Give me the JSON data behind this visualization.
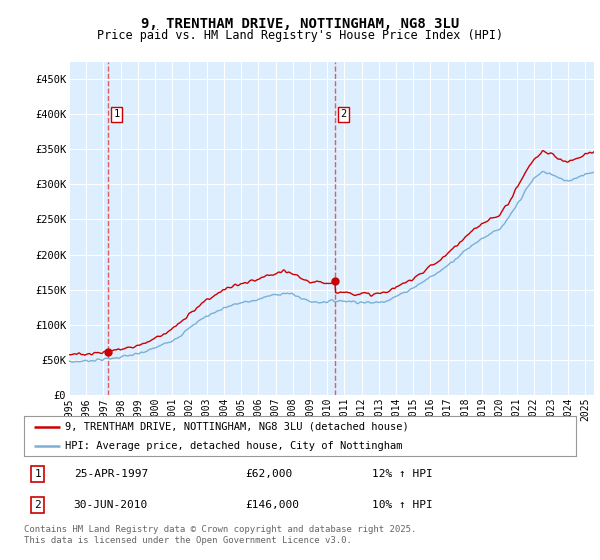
{
  "title": "9, TRENTHAM DRIVE, NOTTINGHAM, NG8 3LU",
  "subtitle": "Price paid vs. HM Land Registry's House Price Index (HPI)",
  "legend_line1": "9, TRENTHAM DRIVE, NOTTINGHAM, NG8 3LU (detached house)",
  "legend_line2": "HPI: Average price, detached house, City of Nottingham",
  "footer": "Contains HM Land Registry data © Crown copyright and database right 2025.\nThis data is licensed under the Open Government Licence v3.0.",
  "purchase1_date": "25-APR-1997",
  "purchase1_price": 62000,
  "purchase1_hpi": "12% ↑ HPI",
  "purchase2_date": "30-JUN-2010",
  "purchase2_price": 146000,
  "purchase2_hpi": "10% ↑ HPI",
  "t1": 1997.29,
  "t2": 2010.46,
  "xmin": 1995.0,
  "xmax": 2025.5,
  "ymin": 0,
  "ymax": 475000,
  "yticks": [
    0,
    50000,
    100000,
    150000,
    200000,
    250000,
    300000,
    350000,
    400000,
    450000
  ],
  "ytick_labels": [
    "£0",
    "£50K",
    "£100K",
    "£150K",
    "£200K",
    "£250K",
    "£300K",
    "£350K",
    "£400K",
    "£450K"
  ],
  "line_color_red": "#cc0000",
  "line_color_blue": "#7ab0d4",
  "vline_color": "#dd4444",
  "marker_color": "#cc0000",
  "plot_bg": "#ddeeff",
  "grid_color": "#ffffff",
  "annotation_box_color": "#cc0000",
  "xtick_years": [
    1995,
    1996,
    1997,
    1998,
    1999,
    2000,
    2001,
    2002,
    2003,
    2004,
    2005,
    2006,
    2007,
    2008,
    2009,
    2010,
    2011,
    2012,
    2013,
    2014,
    2015,
    2016,
    2017,
    2018,
    2019,
    2020,
    2021,
    2022,
    2023,
    2024,
    2025
  ],
  "hpi_base_points": [
    [
      1995.0,
      47000
    ],
    [
      1995.5,
      47500
    ],
    [
      1996.0,
      48500
    ],
    [
      1996.5,
      49500
    ],
    [
      1997.0,
      50500
    ],
    [
      1997.5,
      52000
    ],
    [
      1998.0,
      54000
    ],
    [
      1998.5,
      56000
    ],
    [
      1999.0,
      58000
    ],
    [
      1999.5,
      62000
    ],
    [
      2000.0,
      67000
    ],
    [
      2000.5,
      72000
    ],
    [
      2001.0,
      78000
    ],
    [
      2001.5,
      85000
    ],
    [
      2002.0,
      95000
    ],
    [
      2002.5,
      105000
    ],
    [
      2003.0,
      112000
    ],
    [
      2003.5,
      118000
    ],
    [
      2004.0,
      124000
    ],
    [
      2004.5,
      128000
    ],
    [
      2005.0,
      131000
    ],
    [
      2005.5,
      133000
    ],
    [
      2006.0,
      136000
    ],
    [
      2006.5,
      140000
    ],
    [
      2007.0,
      143000
    ],
    [
      2007.5,
      145000
    ],
    [
      2008.0,
      143000
    ],
    [
      2008.5,
      138000
    ],
    [
      2009.0,
      133000
    ],
    [
      2009.5,
      132000
    ],
    [
      2010.0,
      133000
    ],
    [
      2010.5,
      134000
    ],
    [
      2011.0,
      134000
    ],
    [
      2011.5,
      133000
    ],
    [
      2012.0,
      132000
    ],
    [
      2012.5,
      131000
    ],
    [
      2013.0,
      132000
    ],
    [
      2013.5,
      135000
    ],
    [
      2014.0,
      140000
    ],
    [
      2014.5,
      146000
    ],
    [
      2015.0,
      153000
    ],
    [
      2015.5,
      160000
    ],
    [
      2016.0,
      168000
    ],
    [
      2016.5,
      175000
    ],
    [
      2017.0,
      185000
    ],
    [
      2017.5,
      195000
    ],
    [
      2018.0,
      205000
    ],
    [
      2018.5,
      215000
    ],
    [
      2019.0,
      223000
    ],
    [
      2019.5,
      230000
    ],
    [
      2020.0,
      235000
    ],
    [
      2020.5,
      250000
    ],
    [
      2021.0,
      270000
    ],
    [
      2021.5,
      290000
    ],
    [
      2022.0,
      308000
    ],
    [
      2022.5,
      318000
    ],
    [
      2023.0,
      315000
    ],
    [
      2023.5,
      308000
    ],
    [
      2024.0,
      305000
    ],
    [
      2024.5,
      310000
    ],
    [
      2025.0,
      315000
    ],
    [
      2025.5,
      318000
    ]
  ],
  "red_multiplier": 1.12,
  "red_multiplier2": 1.1
}
